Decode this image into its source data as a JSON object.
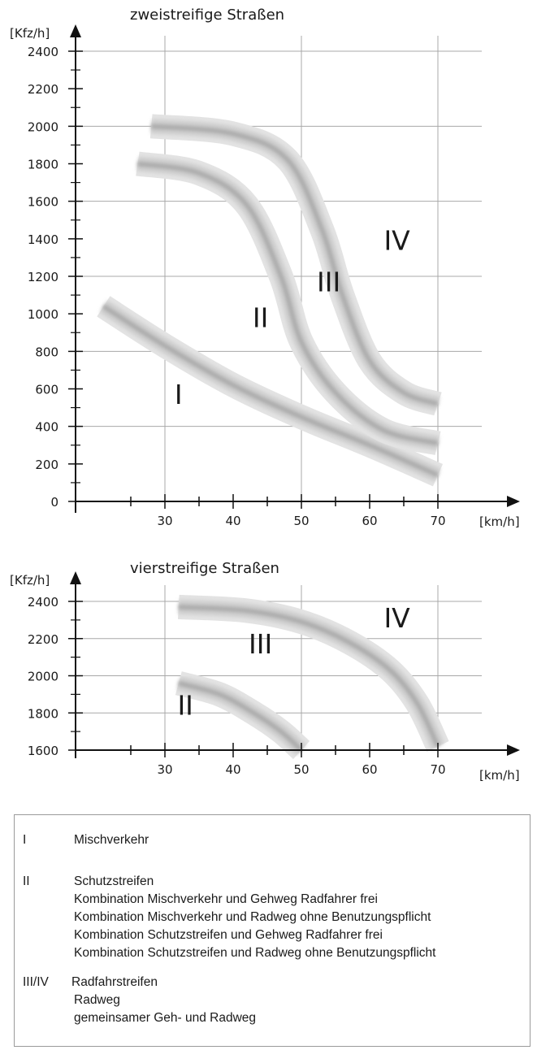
{
  "chart_data": [
    {
      "type": "line",
      "title": "zweistreifige Straßen",
      "ylabel": "[Kfz/h]",
      "xlabel": "[km/h]",
      "xlim": [
        20,
        72
      ],
      "ylim": [
        0,
        2450
      ],
      "x_ticks": [
        30,
        40,
        50,
        60,
        70
      ],
      "y_ticks": [
        0,
        200,
        400,
        600,
        800,
        1000,
        1200,
        1400,
        1600,
        1800,
        2000,
        2200,
        2400
      ],
      "grid": true,
      "series": [
        {
          "name": "I",
          "x": [
            21,
            30,
            40,
            50,
            60,
            70
          ],
          "y": [
            1040,
            830,
            620,
            450,
            300,
            140
          ]
        },
        {
          "name": "II",
          "x": [
            26,
            35,
            42,
            47,
            50,
            55,
            62,
            70
          ],
          "y": [
            1800,
            1750,
            1580,
            1200,
            850,
            580,
            380,
            310
          ]
        },
        {
          "name": "III",
          "x": [
            28,
            40,
            48,
            53,
            56,
            60,
            65,
            70
          ],
          "y": [
            2000,
            1960,
            1820,
            1450,
            1100,
            750,
            580,
            520
          ]
        }
      ],
      "annotations": [
        {
          "text": "I",
          "x": 32,
          "y": 520
        },
        {
          "text": "II",
          "x": 44,
          "y": 930
        },
        {
          "text": "III",
          "x": 54,
          "y": 1120
        },
        {
          "text": "IV",
          "x": 64,
          "y": 1340
        }
      ]
    },
    {
      "type": "line",
      "title": "vierstreifige Straßen",
      "ylabel": "[Kfz/h]",
      "xlabel": "[km/h]",
      "xlim": [
        20,
        72
      ],
      "ylim": [
        1600,
        2440
      ],
      "x_ticks": [
        30,
        40,
        50,
        60,
        70
      ],
      "y_ticks": [
        1600,
        1800,
        2000,
        2200,
        2400
      ],
      "grid": true,
      "series": [
        {
          "name": "II",
          "x": [
            32,
            38,
            43,
            47,
            50
          ],
          "y": [
            1960,
            1900,
            1800,
            1700,
            1600
          ]
        },
        {
          "name": "III",
          "x": [
            32,
            42,
            50,
            57,
            63,
            67,
            70
          ],
          "y": [
            2370,
            2350,
            2290,
            2180,
            2030,
            1850,
            1620
          ]
        }
      ],
      "annotations": [
        {
          "text": "II",
          "x": 33,
          "y": 1790
        },
        {
          "text": "III",
          "x": 44,
          "y": 2120
        },
        {
          "text": "IV",
          "x": 64,
          "y": 2260
        }
      ]
    }
  ],
  "legend": {
    "entries": [
      {
        "code": "I",
        "lines": [
          "Mischverkehr"
        ]
      },
      {
        "code": "II",
        "lines": [
          "Schutzstreifen",
          "Kombination Mischverkehr und Gehweg Radfahrer frei",
          "Kombination Mischverkehr und Radweg ohne Benutzungspflicht",
          "Kombination Schutzstreifen und Gehweg Radfahrer frei",
          "Kombination Schutzstreifen und Radweg ohne Benutzungspflicht"
        ]
      },
      {
        "code": "III/IV",
        "lines": [
          "Radfahrstreifen",
          "Radweg",
          "gemeinsamer Geh- und Radweg"
        ]
      }
    ]
  }
}
